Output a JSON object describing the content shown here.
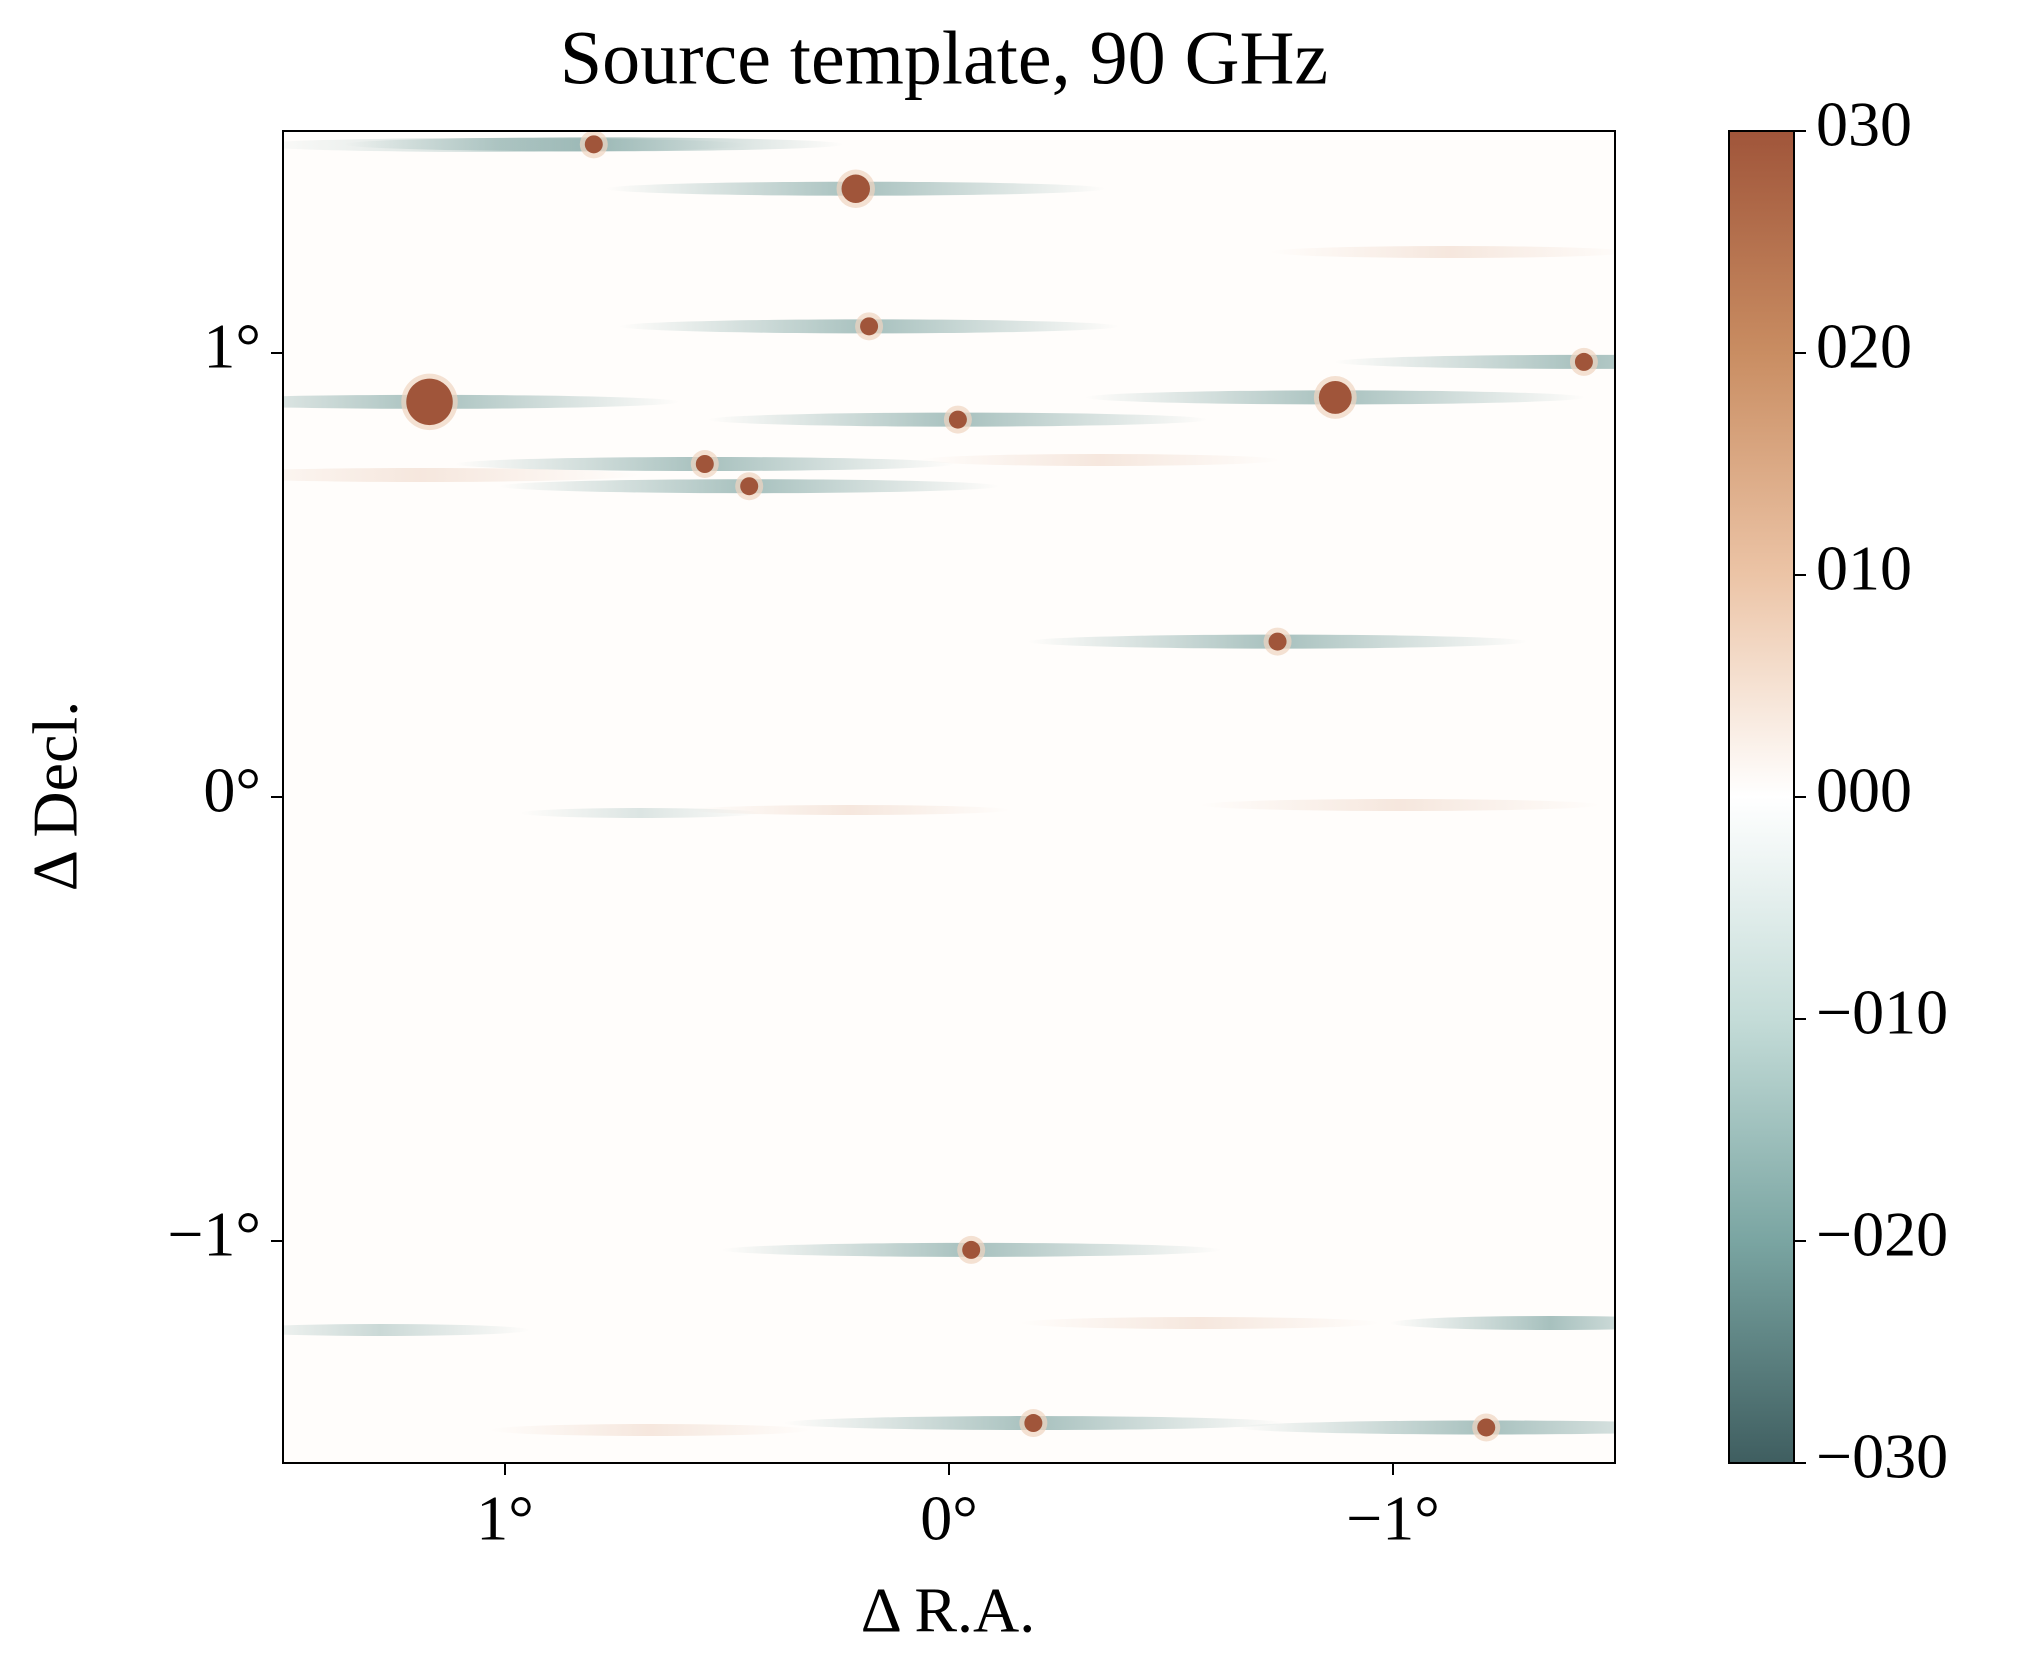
{
  "chart_data": {
    "type": "scatter",
    "title": "Source template, 90 GHz",
    "x_label": "Δ R.A.",
    "y_label": "Δ Decl.",
    "x": [
      0.8,
      0.21,
      0.18,
      -1.43,
      1.17,
      -0.87,
      -0.02,
      0.55,
      0.45,
      -0.74,
      -0.05,
      -0.19,
      -1.21
    ],
    "y": [
      1.47,
      1.37,
      1.06,
      0.98,
      0.89,
      0.9,
      0.85,
      0.75,
      0.7,
      0.35,
      -1.02,
      -1.41,
      -1.42
    ],
    "values": [
      30,
      75,
      30,
      30,
      200,
      100,
      30,
      30,
      30,
      30,
      30,
      30,
      30
    ],
    "color": "#a0553a",
    "xlim": [
      1.5,
      -1.5
    ],
    "ylim": [
      -1.5,
      1.5
    ],
    "xticks": [
      {
        "value": 1,
        "label": "1°"
      },
      {
        "value": 0,
        "label": "0°"
      },
      {
        "value": -1,
        "label": "−1°"
      }
    ],
    "yticks": [
      {
        "value": 1,
        "label": "1°"
      },
      {
        "value": 0,
        "label": "0°"
      },
      {
        "value": -1,
        "label": "−1°"
      }
    ],
    "colorbar": {
      "lim": [
        -30,
        30
      ],
      "colormap": [
        "#3f5e60",
        "#7aa5a2",
        "#c4dcd8",
        "#ffffff",
        "#ecc4a6",
        "#c98d62",
        "#a0553a"
      ],
      "ticks": [
        {
          "value": 30,
          "label": "030"
        },
        {
          "value": 20,
          "label": "020"
        },
        {
          "value": 10,
          "label": "010"
        },
        {
          "value": 0,
          "label": "000"
        },
        {
          "value": -10,
          "label": "−010"
        },
        {
          "value": -20,
          "label": "−020"
        },
        {
          "value": -30,
          "label": "−030"
        }
      ]
    }
  }
}
